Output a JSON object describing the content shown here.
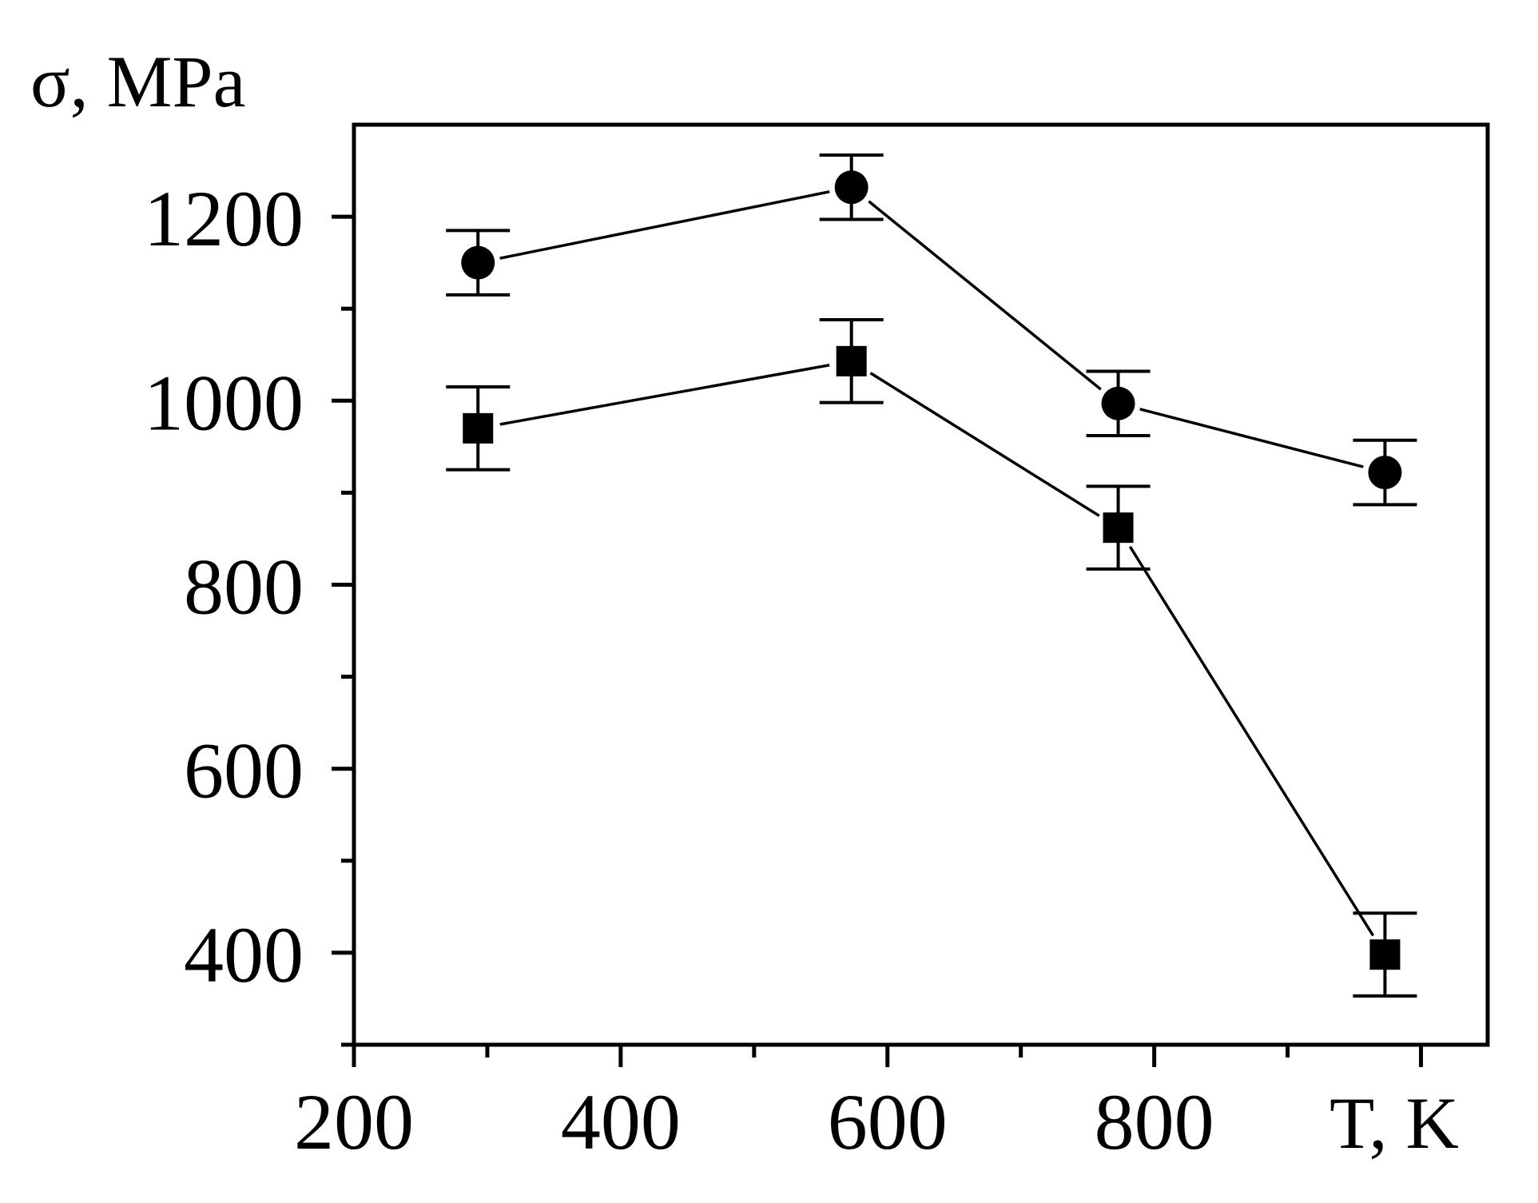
{
  "chart_data": {
    "type": "line",
    "title": "",
    "xlabel": "T, K",
    "ylabel": "σ, MPa",
    "xlim": [
      200,
      1050
    ],
    "ylim": [
      300,
      1300
    ],
    "x_major_ticks": [
      200,
      400,
      600,
      800,
      1000
    ],
    "x_tick_labels": [
      "200",
      "400",
      "600",
      "800"
    ],
    "x_minor_ticks": [
      300,
      500,
      700,
      900
    ],
    "y_major_ticks": [
      400,
      600,
      800,
      1000,
      1200
    ],
    "y_tick_labels": [
      "400",
      "600",
      "800",
      "1000",
      "1200"
    ],
    "y_minor_ticks": [
      300,
      500,
      700,
      900,
      1100
    ],
    "series": [
      {
        "name": "circles",
        "marker": "circle",
        "x": [
          293,
          573,
          773,
          973
        ],
        "y": [
          1150,
          1232,
          997,
          922
        ],
        "err": [
          35,
          35,
          35,
          35
        ]
      },
      {
        "name": "squares",
        "marker": "square",
        "x": [
          293,
          573,
          773,
          973
        ],
        "y": [
          970,
          1043,
          862,
          398
        ],
        "err": [
          45,
          45,
          45,
          45
        ]
      }
    ]
  }
}
